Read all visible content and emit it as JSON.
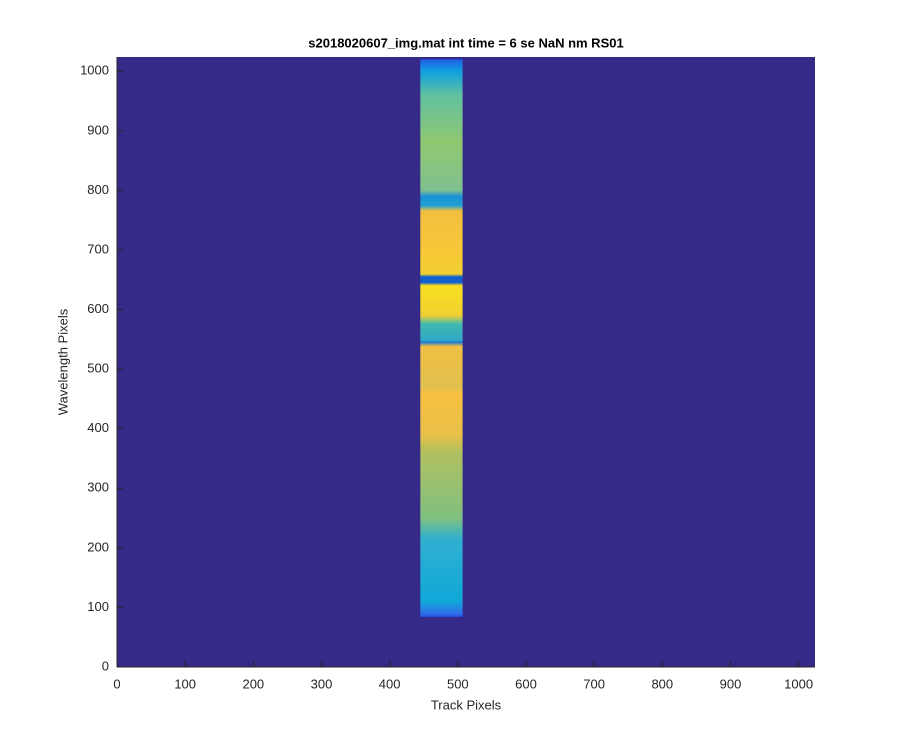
{
  "chart_data": {
    "type": "image",
    "title": "s2018020607_img.mat int time = 6 se  NaN nm RS01",
    "x_label": "Track Pixels",
    "y_label": "Wavelength Pixels",
    "xlim": [
      0,
      1024
    ],
    "ylim": [
      0,
      1024
    ],
    "xticks": [
      0,
      100,
      200,
      300,
      400,
      500,
      600,
      700,
      800,
      900,
      1000
    ],
    "yticks": [
      0,
      100,
      200,
      300,
      400,
      500,
      600,
      700,
      800,
      900,
      1000
    ],
    "background_color": "#352a87",
    "stripe": {
      "x": [
        445,
        507
      ],
      "y": [
        84,
        1020
      ]
    }
  }
}
